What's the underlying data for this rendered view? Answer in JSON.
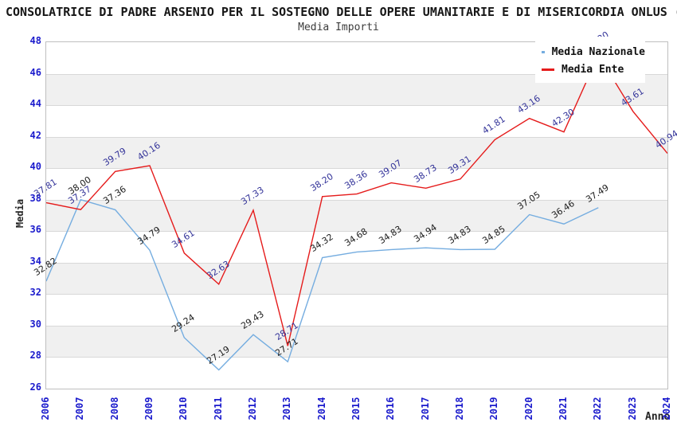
{
  "header": {
    "title": "CONSOLATRICE DI PADRE ARSENIO PER IL SOSTEGNO DELLE OPERE UMANITARIE E DI MISERICORDIA ONLUS (",
    "subtitle": "Media Importi"
  },
  "axes": {
    "y_label": "Media",
    "x_label": "Anno",
    "y_ticks": [
      26,
      28,
      30,
      32,
      34,
      36,
      38,
      40,
      42,
      44,
      46,
      48
    ],
    "x_ticks": [
      "2006",
      "2007",
      "2008",
      "2009",
      "2010",
      "2011",
      "2012",
      "2013",
      "2014",
      "2015",
      "2016",
      "2017",
      "2018",
      "2019",
      "2020",
      "2021",
      "2022",
      "2023",
      "2024"
    ]
  },
  "legend": {
    "items": [
      {
        "label": "Media Nazionale",
        "color": "#75ade0"
      },
      {
        "label": "Media Ente",
        "color": "#e51b1b"
      }
    ]
  },
  "colors": {
    "tick_blue": "#1a1acc",
    "label_nazionale": "#1c1c1c",
    "label_ente": "#333399",
    "band_gray": "#f0f0f0",
    "gridline": "#d8d8d8",
    "plot_border": "#bfbfbf"
  },
  "chart_data": {
    "type": "line",
    "title": "Media Importi",
    "xlabel": "Anno",
    "ylabel": "Media",
    "ylim": [
      26,
      48
    ],
    "grid": "horizontal-bands-alternating",
    "legend_position": "top-right-inside",
    "x": [
      2006,
      2007,
      2008,
      2009,
      2010,
      2011,
      2012,
      2013,
      2014,
      2015,
      2016,
      2017,
      2018,
      2019,
      2020,
      2021,
      2022,
      2023,
      2024
    ],
    "series": [
      {
        "name": "Media Nazionale",
        "color": "#75ade0",
        "label_color": "#1c1c1c",
        "values": [
          32.82,
          38.0,
          37.36,
          34.79,
          29.24,
          27.19,
          29.43,
          27.71,
          34.32,
          34.68,
          34.83,
          34.94,
          34.83,
          34.85,
          37.05,
          36.46,
          37.49,
          null,
          null
        ]
      },
      {
        "name": "Media Ente",
        "color": "#e51b1b",
        "label_color": "#333399",
        "values": [
          37.81,
          37.37,
          39.79,
          40.16,
          34.61,
          32.63,
          37.33,
          28.71,
          38.2,
          38.36,
          39.07,
          38.73,
          39.31,
          41.81,
          43.16,
          42.3,
          47.2,
          43.61,
          40.94
        ]
      }
    ]
  }
}
